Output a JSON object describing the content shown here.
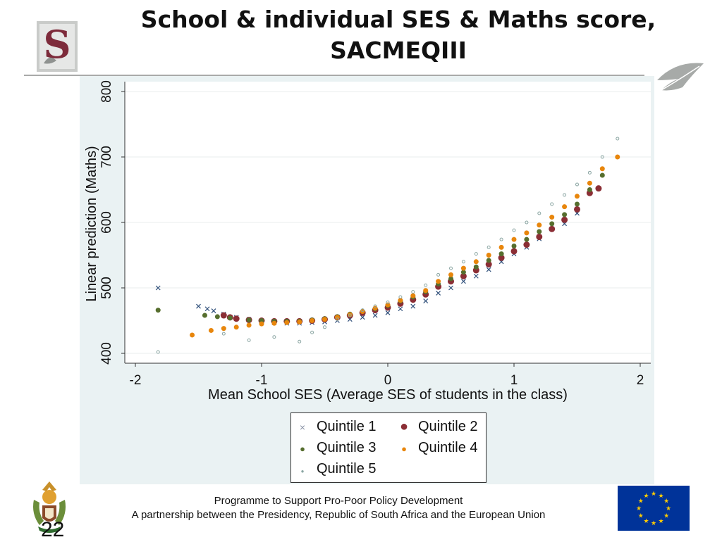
{
  "slide": {
    "title": "School & individual SES & Maths score, SACMEQIII",
    "page_number": "22",
    "footer_line1": "Programme to Support Pro-Poor Policy Development",
    "footer_line2": "A partnership between the Presidency, Republic of South Africa and the European Union",
    "logo_letter": "S"
  },
  "colors": {
    "title_rule": "#a9aaa9",
    "plot_background": "#eaf2f3",
    "quintile1": "#2f4f7a",
    "quintile2": "#8b2e35",
    "quintile3": "#566e2e",
    "quintile4": "#e8860c",
    "quintile5": "#8aa5a2",
    "eu_blue": "#003399",
    "eu_star": "#ffcc00"
  },
  "chart_data": {
    "type": "scatter",
    "title": "",
    "xlabel": "Mean School SES (Average SES of students in the class)",
    "ylabel": "Linear prediction (Maths)",
    "xlim": [
      -2,
      2
    ],
    "ylim": [
      400,
      800
    ],
    "xticks": [
      "-2",
      "-1",
      "0",
      "1",
      "2"
    ],
    "yticks": [
      "400",
      "500",
      "600",
      "700",
      "800"
    ],
    "grid": true,
    "legend_position": "bottom-center",
    "series": [
      {
        "name": "Quintile 1",
        "marker": "x",
        "points": [
          [
            -1.82,
            500
          ],
          [
            -1.5,
            472
          ],
          [
            -1.43,
            468
          ],
          [
            -1.38,
            465
          ],
          [
            -1.3,
            460
          ],
          [
            -1.2,
            455
          ],
          [
            -1.1,
            452
          ],
          [
            -1.0,
            449
          ],
          [
            -0.9,
            447
          ],
          [
            -0.8,
            446
          ],
          [
            -0.7,
            446
          ],
          [
            -0.6,
            447
          ],
          [
            -0.5,
            448
          ],
          [
            -0.4,
            450
          ],
          [
            -0.3,
            452
          ],
          [
            -0.2,
            455
          ],
          [
            -0.1,
            458
          ],
          [
            0.0,
            462
          ],
          [
            0.1,
            468
          ],
          [
            0.2,
            472
          ],
          [
            0.3,
            480
          ],
          [
            0.4,
            492
          ],
          [
            0.5,
            500
          ],
          [
            0.6,
            510
          ],
          [
            0.7,
            518
          ],
          [
            0.8,
            528
          ],
          [
            0.9,
            540
          ],
          [
            1.0,
            552
          ],
          [
            1.1,
            562
          ],
          [
            1.2,
            575
          ],
          [
            1.3,
            590
          ],
          [
            1.4,
            598
          ],
          [
            1.5,
            614
          ]
        ]
      },
      {
        "name": "Quintile 2",
        "marker": "circle-large",
        "points": [
          [
            -1.3,
            458
          ],
          [
            -1.25,
            455
          ],
          [
            -1.2,
            453
          ],
          [
            -1.1,
            451
          ],
          [
            -1.0,
            450
          ],
          [
            -0.9,
            449
          ],
          [
            -0.8,
            449
          ],
          [
            -0.7,
            449
          ],
          [
            -0.6,
            450
          ],
          [
            -0.5,
            452
          ],
          [
            -0.4,
            455
          ],
          [
            -0.3,
            458
          ],
          [
            -0.2,
            462
          ],
          [
            -0.1,
            466
          ],
          [
            0.0,
            470
          ],
          [
            0.1,
            476
          ],
          [
            0.2,
            482
          ],
          [
            0.3,
            490
          ],
          [
            0.4,
            502
          ],
          [
            0.5,
            510
          ],
          [
            0.6,
            518
          ],
          [
            0.7,
            527
          ],
          [
            0.8,
            536
          ],
          [
            0.9,
            546
          ],
          [
            1.0,
            556
          ],
          [
            1.1,
            566
          ],
          [
            1.2,
            578
          ],
          [
            1.3,
            590
          ],
          [
            1.4,
            604
          ],
          [
            1.5,
            620
          ],
          [
            1.6,
            645
          ],
          [
            1.67,
            652
          ]
        ]
      },
      {
        "name": "Quintile 3",
        "marker": "circle-medium",
        "points": [
          [
            -1.82,
            466
          ],
          [
            -1.45,
            458
          ],
          [
            -1.35,
            456
          ],
          [
            -1.25,
            454
          ],
          [
            -1.1,
            451
          ],
          [
            -1.0,
            450
          ],
          [
            -0.9,
            449
          ],
          [
            -0.8,
            449
          ],
          [
            -0.7,
            449
          ],
          [
            -0.6,
            451
          ],
          [
            -0.5,
            453
          ],
          [
            -0.4,
            456
          ],
          [
            -0.3,
            460
          ],
          [
            -0.2,
            464
          ],
          [
            -0.1,
            468
          ],
          [
            0.0,
            473
          ],
          [
            0.1,
            480
          ],
          [
            0.2,
            486
          ],
          [
            0.3,
            494
          ],
          [
            0.4,
            506
          ],
          [
            0.5,
            514
          ],
          [
            0.6,
            524
          ],
          [
            0.7,
            532
          ],
          [
            0.8,
            542
          ],
          [
            0.9,
            552
          ],
          [
            1.0,
            564
          ],
          [
            1.1,
            574
          ],
          [
            1.2,
            586
          ],
          [
            1.3,
            598
          ],
          [
            1.4,
            612
          ],
          [
            1.5,
            628
          ],
          [
            1.6,
            650
          ],
          [
            1.7,
            672
          ]
        ]
      },
      {
        "name": "Quintile 4",
        "marker": "circle-medium",
        "points": [
          [
            -1.55,
            428
          ],
          [
            -1.4,
            435
          ],
          [
            -1.3,
            438
          ],
          [
            -1.2,
            440
          ],
          [
            -1.1,
            443
          ],
          [
            -1.0,
            445
          ],
          [
            -0.9,
            446
          ],
          [
            -0.8,
            447
          ],
          [
            -0.7,
            448
          ],
          [
            -0.6,
            450
          ],
          [
            -0.5,
            452
          ],
          [
            -0.4,
            455
          ],
          [
            -0.3,
            459
          ],
          [
            -0.2,
            464
          ],
          [
            -0.1,
            469
          ],
          [
            0.0,
            474
          ],
          [
            0.1,
            481
          ],
          [
            0.2,
            488
          ],
          [
            0.3,
            496
          ],
          [
            0.4,
            510
          ],
          [
            0.5,
            520
          ],
          [
            0.6,
            530
          ],
          [
            0.7,
            540
          ],
          [
            0.8,
            550
          ],
          [
            0.9,
            562
          ],
          [
            1.0,
            574
          ],
          [
            1.1,
            584
          ],
          [
            1.2,
            596
          ],
          [
            1.3,
            608
          ],
          [
            1.4,
            624
          ],
          [
            1.5,
            640
          ],
          [
            1.6,
            660
          ],
          [
            1.7,
            682
          ],
          [
            1.82,
            700
          ]
        ]
      },
      {
        "name": "Quintile 5",
        "marker": "dot-small",
        "points": [
          [
            -1.82,
            402
          ],
          [
            -1.3,
            430
          ],
          [
            -1.1,
            420
          ],
          [
            -0.9,
            425
          ],
          [
            -0.7,
            418
          ],
          [
            -0.6,
            432
          ],
          [
            -0.5,
            440
          ],
          [
            -0.4,
            452
          ],
          [
            -0.3,
            458
          ],
          [
            -0.2,
            466
          ],
          [
            -0.1,
            472
          ],
          [
            0.0,
            478
          ],
          [
            0.1,
            486
          ],
          [
            0.2,
            494
          ],
          [
            0.3,
            504
          ],
          [
            0.4,
            520
          ],
          [
            0.5,
            530
          ],
          [
            0.6,
            540
          ],
          [
            0.7,
            552
          ],
          [
            0.8,
            562
          ],
          [
            0.9,
            574
          ],
          [
            1.0,
            588
          ],
          [
            1.1,
            600
          ],
          [
            1.2,
            614
          ],
          [
            1.3,
            628
          ],
          [
            1.4,
            642
          ],
          [
            1.5,
            658
          ],
          [
            1.6,
            676
          ],
          [
            1.7,
            700
          ],
          [
            1.82,
            728
          ]
        ]
      }
    ]
  }
}
